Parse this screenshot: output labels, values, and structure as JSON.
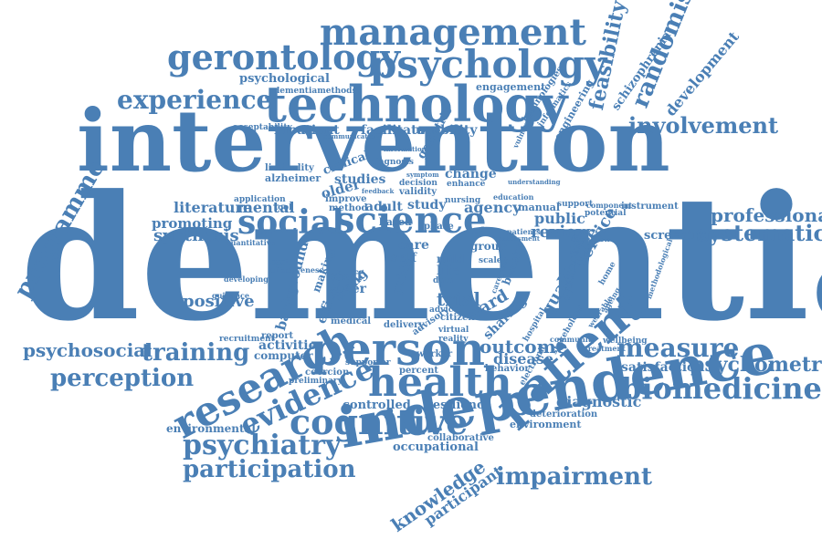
{
  "color": "#4a7fb5",
  "words": {
    "dementia": "dementia",
    "intervention": "intervention",
    "technology": "technology",
    "psychology": "psychology",
    "management": "management",
    "gerontology": "gerontology",
    "experience": "experience",
    "psychological": "psychological",
    "dementiamethods": "dementiamethods",
    "engagement": "engagement",
    "technologies": "technologies",
    "informatics": "informatics",
    "engineering": "engineering",
    "feasibility": "feasibility",
    "schizophrenia": "schizophrenia",
    "randomised": "randomised",
    "development": "development",
    "involvement": "involvement",
    "acceptability": "acceptability",
    "inpatient": "inpatient",
    "facilitator": "facilitator",
    "usability": "usability",
    "geriatric": "geriatric",
    "programme": "programme",
    "social": "social",
    "science": "science",
    "literature": "literature",
    "mental": "mental",
    "promoting": "promoting",
    "synthesis": "synthesis",
    "professional": "professional",
    "systematic": "systematic",
    "screening": "screening",
    "review": "review",
    "public": "public",
    "service": "service",
    "manual": "manual",
    "agency": "agency",
    "instrument": "instrument",
    "potential": "potential",
    "support": "support",
    "clinical": "clinical",
    "studies": "studies",
    "older": "older",
    "adult": "adult",
    "study": "study",
    "change": "change",
    "alzheimer": "alzheimer",
    "liminality": "liminality",
    "diagnosis": "diagnosis",
    "decision": "decision",
    "validity": "validity",
    "enhance": "enhance",
    "positive": "positive",
    "background": "background",
    "staff": "staff",
    "peer": "peer",
    "care": "care",
    "self": "self",
    "mild": "mild",
    "life": "life",
    "group": "group",
    "scale": "scale",
    "trial": "trial",
    "ward": "ward",
    "qualitative": "qualitative",
    "dysfunction": "dysfunction",
    "quantitative": "quantitative",
    "medical": "medical",
    "delivery": "delivery",
    "advisory": "advisory",
    "pride": "pride",
    "living": "living",
    "sharing": "sharing",
    "benefit": "benefit",
    "psychosocial": "psychosocial",
    "training": "training",
    "activities": "activities",
    "computer": "computer",
    "recruitment": "recruitment",
    "perception": "perception",
    "research": "research",
    "person": "person",
    "outcome": "outcome",
    "measure": "measure",
    "disease": "disease",
    "behavior": "behavior",
    "percent": "percent",
    "satisfaction": "satisfaction",
    "psychometric": "psychometric",
    "biomedicine": "biomedicine",
    "evidence": "evidence",
    "health": "health",
    "patient": "patient",
    "cognitive": "cognitive",
    "controlled": "controlled",
    "resilience": "resilience",
    "diagnostic": "diagnostic",
    "deterioration": "deterioration",
    "environment": "environment",
    "environmental": "environmental",
    "preliminary": "preliminary",
    "coercion": "coercion",
    "psychiatry": "psychiatry",
    "participation": "participation",
    "independence": "independence",
    "occupational": "occupational",
    "collaborative": "collaborative",
    "impairment": "impairment",
    "knowledge": "knowledge",
    "participant": "participant",
    "worker": "worker",
    "citizen": "citizen",
    "efficacy": "efficacy",
    "making": "making",
    "based": "based",
    "phase": "phase",
    "method": "method",
    "improve": "improve",
    "report": "report",
    "virtual": "virtual",
    "reality": "reality",
    "data": "data",
    "advice": "advice",
    "nursing": "nursing",
    "application": "application",
    "developing": "developing",
    "component": "component",
    "methodological": "methodological",
    "hospital": "hospital",
    "supporter": "supporter",
    "education": "education",
    "electronic": "electronic",
    "stakeholder": "stakeholder",
    "wellbeing": "wellbeing",
    "guidance": "guidance",
    "communication": "communication",
    "information": "information",
    "vulnerable": "vulnerable",
    "cost": "cost",
    "effectiveness": "effectiveness",
    "cognition": "cognition",
    "home": "home",
    "ageing": "ageing",
    "tool": "tool",
    "patients": "patients",
    "understanding": "understanding",
    "community": "community",
    "treatment": "treatment",
    "wearable": "wearable",
    "assessment": "assessment",
    "caregiver": "caregiver",
    "feedback": "feedback",
    "symptom": "symptom"
  }
}
